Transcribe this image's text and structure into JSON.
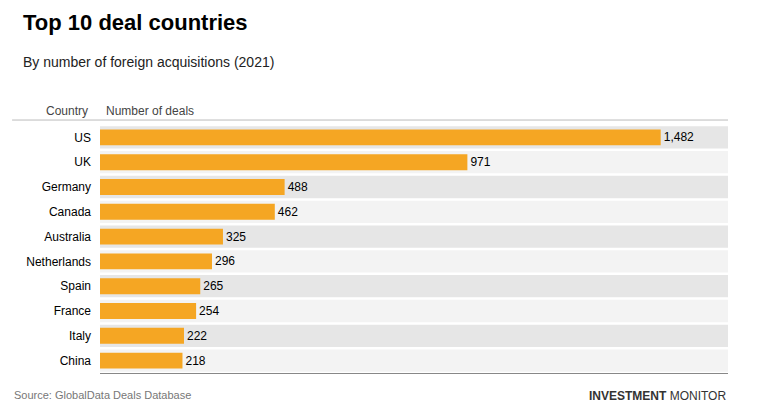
{
  "chart_data": {
    "type": "bar",
    "orientation": "horizontal",
    "title": "Top 10 deal countries",
    "subtitle": "By number of foreign acquisitions (2021)",
    "header": [
      "Country",
      "Number of deals"
    ],
    "source": "Source: GlobalData Deals Database",
    "brand": [
      "INVESTMENT",
      "MONITOR"
    ],
    "categories": [
      "US",
      "UK",
      "Germany",
      "Canada",
      "Australia",
      "Netherlands",
      "Spain",
      "France",
      "Italy",
      "China"
    ],
    "values": [
      1482,
      971,
      488,
      462,
      325,
      296,
      265,
      254,
      222,
      218
    ],
    "value_labels": [
      "1,482",
      "971",
      "488",
      "462",
      "325",
      "296",
      "265",
      "254",
      "222",
      "218"
    ],
    "data_labels": true,
    "color": "#F5A623",
    "xlim": [
      0,
      1659.84
    ],
    "grid": false,
    "tick_labels": "y"
  }
}
